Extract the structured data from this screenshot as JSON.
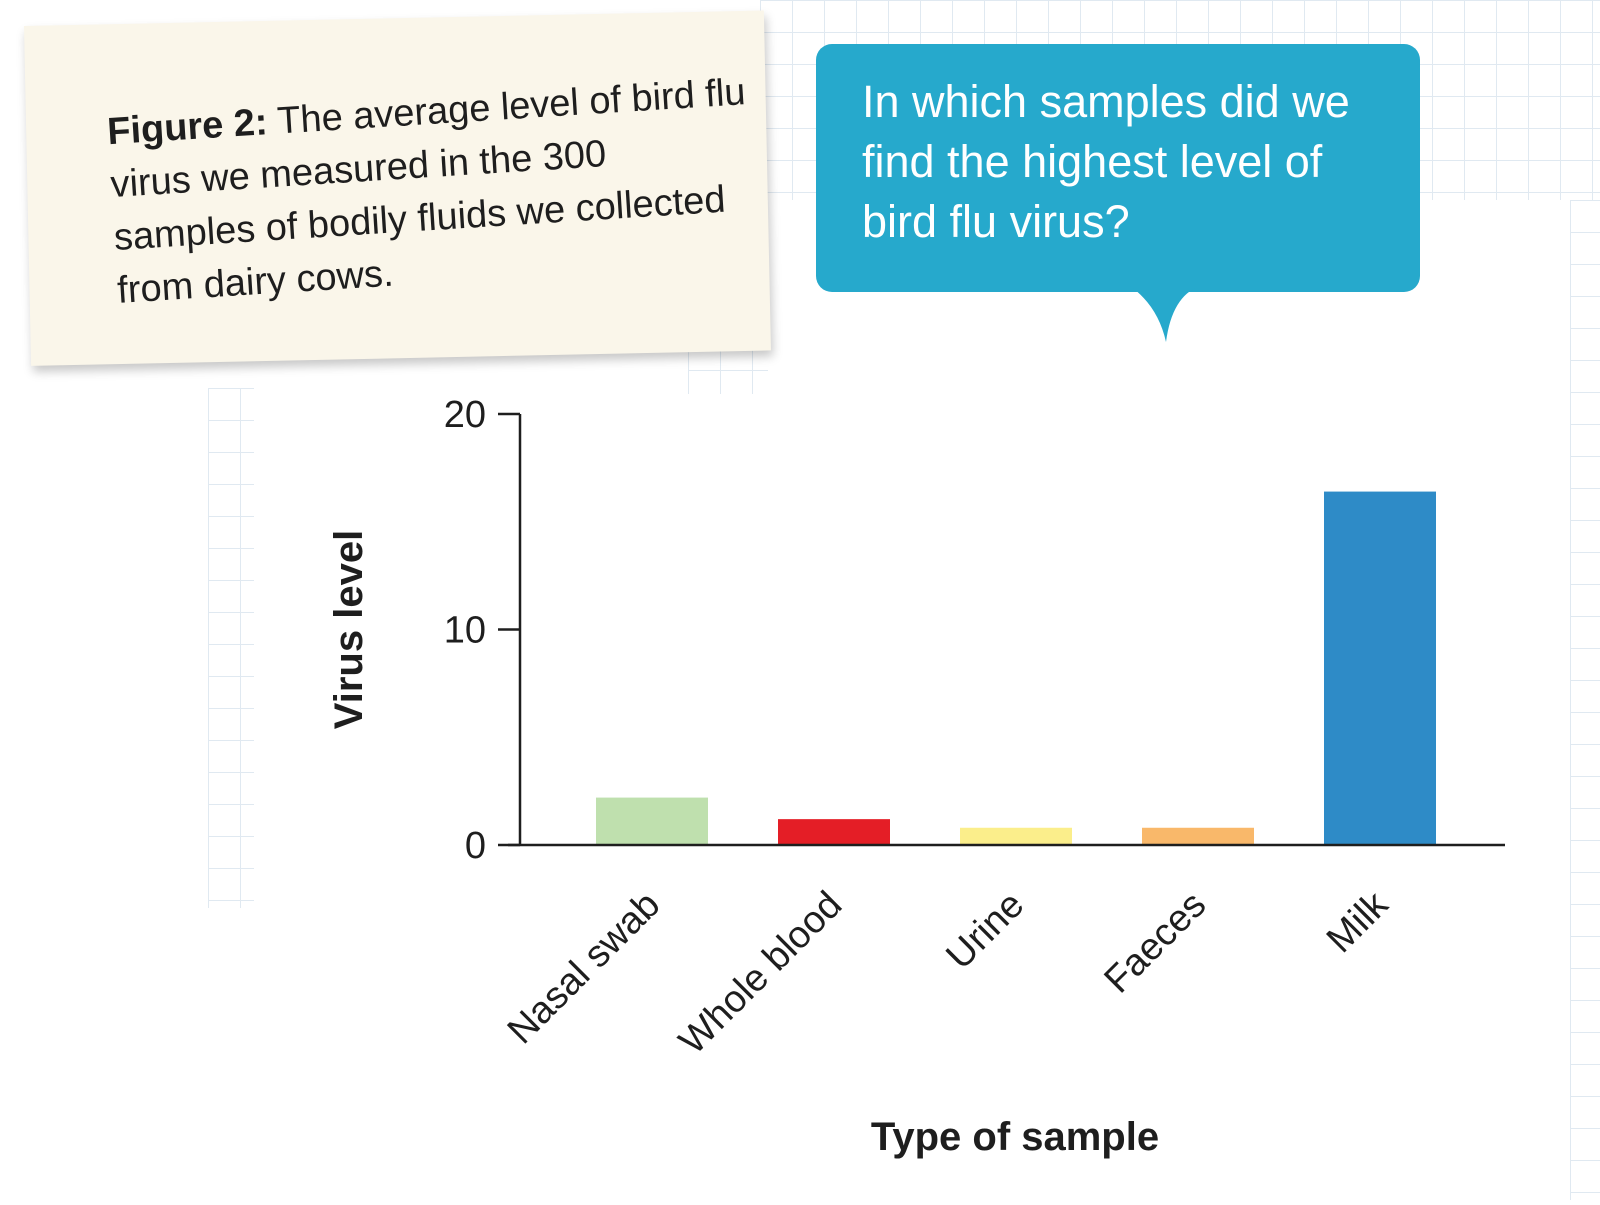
{
  "caption": {
    "figure_label": "Figure 2:",
    "text": "The average level of bird flu virus we measured in the 300 samples of bodily fluids we collected from dairy cows."
  },
  "bubble": {
    "text": "In which samples did we find the highest level of bird flu virus?",
    "color": "#26a9cc"
  },
  "chart_data": {
    "type": "bar",
    "categories": [
      "Nasal swab",
      "Whole blood",
      "Urine",
      "Faeces",
      "Milk"
    ],
    "values": [
      2.2,
      1.2,
      0.8,
      0.8,
      16.4
    ],
    "colors": [
      "#bfe0ae",
      "#e41e26",
      "#fbee8b",
      "#f9b86a",
      "#2e8bc7"
    ],
    "xlabel": "Type of sample",
    "ylabel": "Virus level",
    "ylim": [
      0,
      20
    ],
    "yticks": [
      0,
      10,
      20
    ],
    "grid": false,
    "legend": "none"
  }
}
